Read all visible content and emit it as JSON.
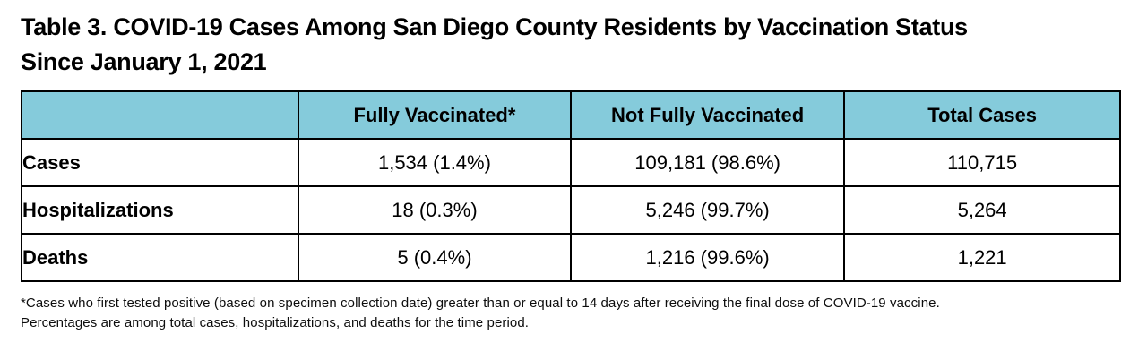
{
  "title": {
    "line1": "Table 3. COVID-19 Cases Among San Diego County Residents by Vaccination Status",
    "line2": "Since January 1, 2021"
  },
  "table": {
    "header_bg_color": "#85CBDB",
    "border_color": "#000000",
    "columns": [
      "",
      "Fully Vaccinated*",
      "Not Fully Vaccinated",
      "Total Cases"
    ],
    "rows": [
      {
        "label": "Cases",
        "values": [
          "1,534 (1.4%)",
          "109,181 (98.6%)",
          "110,715"
        ]
      },
      {
        "label": "Hospitalizations",
        "values": [
          "18 (0.3%)",
          "5,246 (99.7%)",
          "5,264"
        ]
      },
      {
        "label": "Deaths",
        "values": [
          "5 (0.4%)",
          "1,216 (99.6%)",
          "1,221"
        ]
      }
    ]
  },
  "footnote": {
    "line1": "*Cases who first tested positive (based on specimen collection date) greater than or equal to 14 days after receiving the final dose of COVID-19 vaccine.",
    "line2": "Percentages are among total cases, hospitalizations, and deaths for the time period."
  }
}
